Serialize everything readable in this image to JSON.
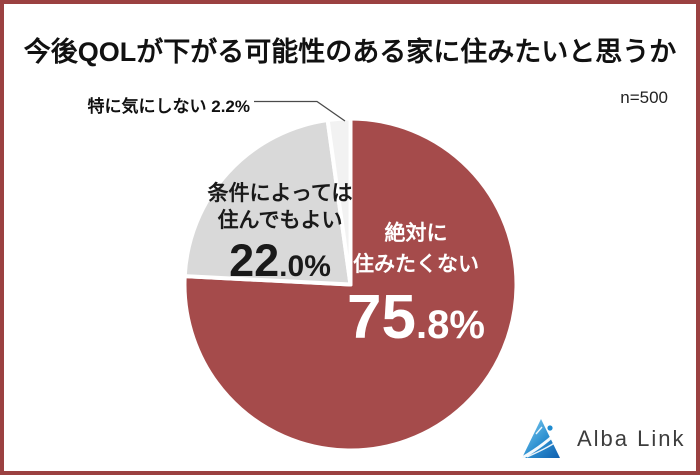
{
  "chart_data": {
    "type": "pie",
    "title": "今後QOLが下がる可能性のある家に住みたいと思うか",
    "sample_size": "n=500",
    "unit": "%",
    "start_angle_deg": -90,
    "direction": "clockwise",
    "slices": [
      {
        "label": "絶対に住みたくない",
        "value": 75.8,
        "display_value": "75.8%",
        "value_big": "75",
        "value_small": ".8%",
        "color": "#A54B4B",
        "text_color": "#FFFFFF",
        "label_lines": [
          "絶対に",
          "住みたくない"
        ]
      },
      {
        "label": "条件によっては住んでもよい",
        "value": 22.0,
        "display_value": "22.0%",
        "value_big": "22",
        "value_small": ".0%",
        "color": "#D9D9D9",
        "text_color": "#1A1A1A",
        "label_lines": [
          "条件によっては",
          "住んでもよい"
        ]
      },
      {
        "label": "特に気にしない",
        "value": 2.2,
        "display_value": "2.2%",
        "callout": "特に気にしない 2.2%",
        "color": "#F2F2F2",
        "text_color": "#111111"
      }
    ]
  },
  "footer": {
    "brand": "Alba Link"
  },
  "colors": {
    "frame_border": "#9B4141",
    "slice_separator": "#FFFFFF",
    "leader_line": "#4A4A4A",
    "logo_blue_light": "#86D3F4",
    "logo_blue_mid": "#2D8FD0",
    "logo_blue_dark": "#0F5FAE",
    "logo_dot": "#1E8BD0",
    "logo_text": "#3D3D3D"
  }
}
